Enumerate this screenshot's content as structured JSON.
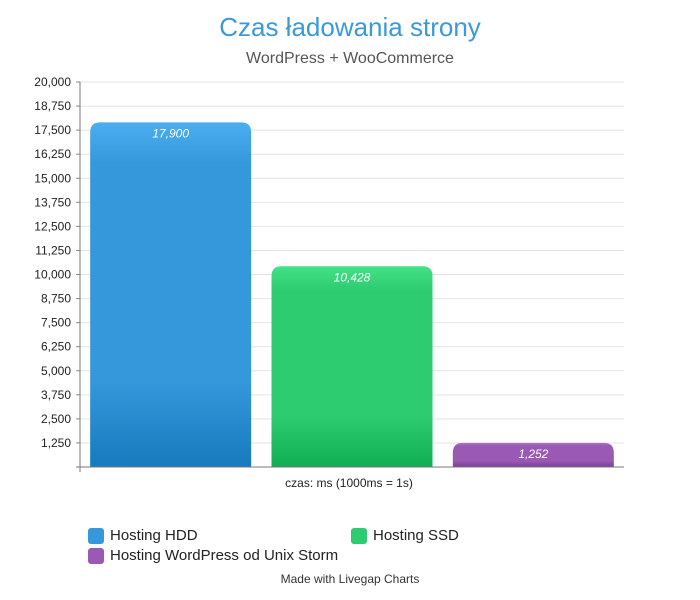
{
  "header": {
    "title": "Czas ładowania strony",
    "subtitle": "WordPress + WooCommerce"
  },
  "footer": {
    "credit": "Made with Livegap Charts"
  },
  "chart_data": {
    "type": "bar",
    "title": "Czas ładowania strony",
    "subtitle": "WordPress + WooCommerce",
    "xlabel": "czas: ms (1000ms = 1s)",
    "ylabel": "",
    "ylim": [
      0,
      20000
    ],
    "yticks": [
      1250,
      2500,
      3750,
      5000,
      6250,
      7500,
      8750,
      10000,
      11250,
      12500,
      13750,
      15000,
      16250,
      17500,
      18750,
      20000
    ],
    "ytick_labels": [
      "1,250",
      "2,500",
      "3,750",
      "5,000",
      "6,250",
      "7,500",
      "8,750",
      "10,000",
      "11,250",
      "12,500",
      "13,750",
      "15,000",
      "16,250",
      "17,500",
      "18,750",
      "20,000"
    ],
    "grid": true,
    "legend_position": "bottom",
    "series": [
      {
        "name": "Hosting HDD",
        "value": 17900,
        "label": "17,900",
        "color": "#3498db"
      },
      {
        "name": "Hosting SSD",
        "value": 10428,
        "label": "10,428",
        "color": "#2ecc71"
      },
      {
        "name": "Hosting WordPress od Unix Storm",
        "value": 1252,
        "label": "1,252",
        "color": "#9b59b6"
      }
    ]
  }
}
